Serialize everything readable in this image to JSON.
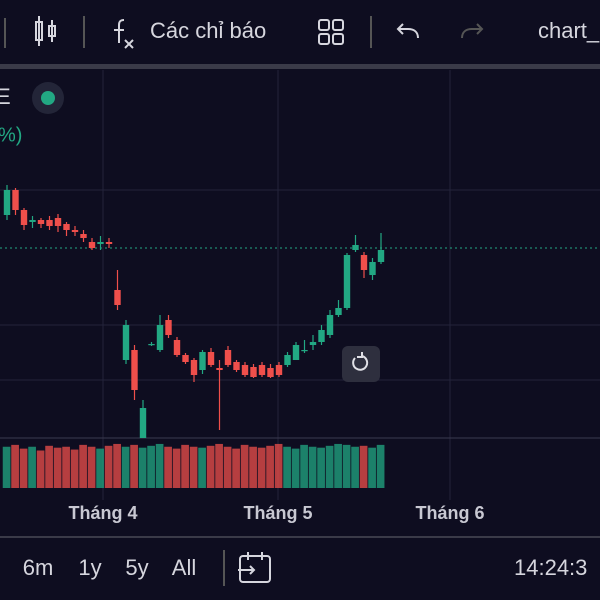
{
  "toolbar": {
    "indicators": "Các chỉ báo",
    "layout_name": "chart_"
  },
  "legend": {
    "symbol": "E",
    "change": "%)"
  },
  "chart_data": {
    "type": "candlestick",
    "up_color": "#22a883",
    "down_color": "#ef4f4b",
    "open": [
      385,
      410,
      390,
      378,
      380,
      380,
      382,
      376,
      370,
      366,
      358,
      356,
      358,
      310,
      240,
      250,
      162,
      255,
      250,
      280,
      260,
      245,
      240,
      230,
      248,
      232,
      250,
      238,
      235,
      233,
      235,
      232,
      235,
      235,
      240,
      250,
      255,
      258,
      265,
      285,
      292,
      350,
      345,
      325,
      338
    ],
    "high": [
      415,
      412,
      392,
      384,
      382,
      384,
      386,
      378,
      374,
      370,
      362,
      364,
      362,
      330,
      280,
      255,
      200,
      258,
      285,
      285,
      263,
      247,
      242,
      250,
      252,
      240,
      254,
      240,
      238,
      236,
      238,
      236,
      238,
      248,
      258,
      260,
      265,
      275,
      290,
      300,
      347,
      365,
      348,
      342,
      367
    ],
    "low": [
      380,
      385,
      370,
      372,
      372,
      370,
      368,
      364,
      364,
      358,
      350,
      350,
      352,
      290,
      236,
      200,
      162,
      254,
      248,
      262,
      243,
      236,
      218,
      226,
      233,
      170,
      233,
      228,
      223,
      222,
      223,
      222,
      223,
      233,
      243,
      247,
      250,
      255,
      262,
      283,
      290,
      348,
      322,
      320,
      336
    ],
    "close": [
      410,
      390,
      375,
      380,
      376,
      374,
      374,
      370,
      368,
      362,
      352,
      358,
      356,
      295,
      275,
      210,
      192,
      256,
      275,
      265,
      245,
      238,
      225,
      248,
      235,
      230,
      235,
      230,
      225,
      223,
      225,
      223,
      225,
      245,
      255,
      250,
      258,
      270,
      285,
      292,
      345,
      355,
      330,
      338,
      350
    ],
    "volume": [
      44,
      46,
      42,
      44,
      40,
      45,
      43,
      44,
      41,
      46,
      44,
      42,
      45,
      47,
      44,
      46,
      43,
      45,
      47,
      44,
      42,
      46,
      44,
      43,
      45,
      47,
      44,
      42,
      46,
      44,
      43,
      45,
      47,
      44,
      42,
      46,
      44,
      43,
      45,
      47,
      46,
      44,
      45,
      43,
      46
    ],
    "ylim": [
      162,
      530
    ],
    "volume_ylim": [
      0,
      48
    ],
    "time_labels": [
      "Tháng 4",
      "Tháng 5",
      "Tháng 6"
    ]
  },
  "ranges": [
    "6m",
    "1y",
    "5y",
    "All"
  ],
  "clock": "14:24:3"
}
